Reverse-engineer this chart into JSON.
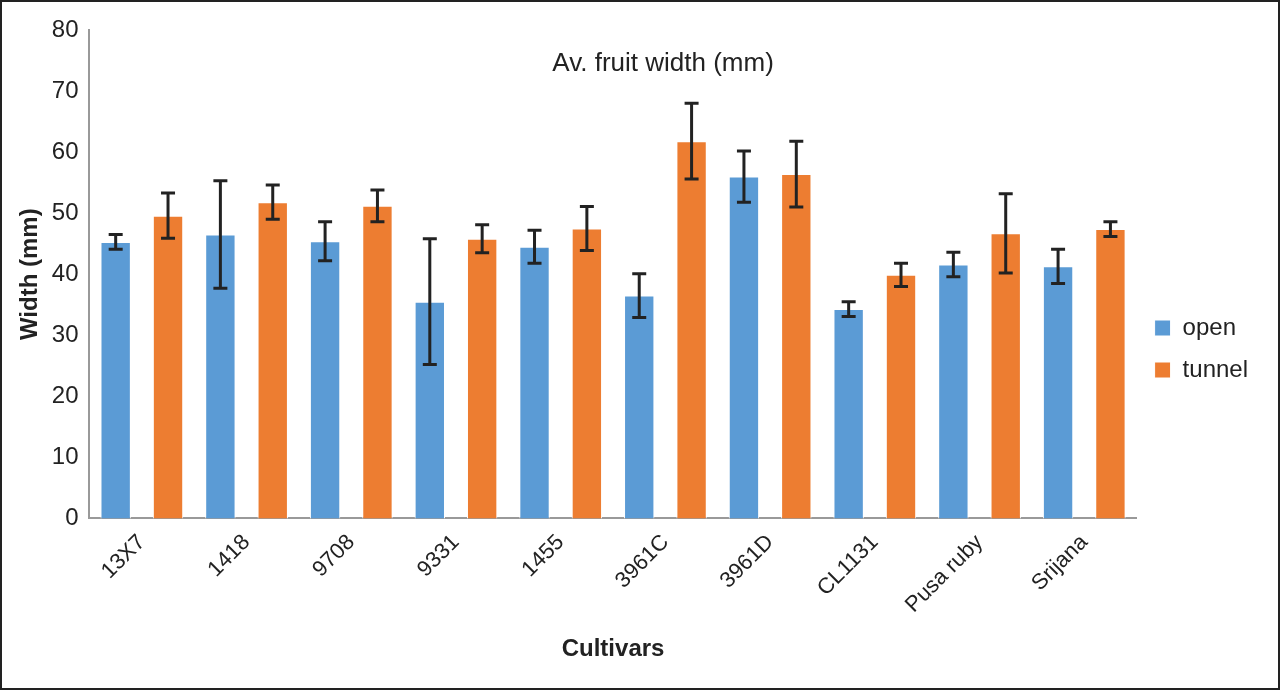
{
  "chart_data": {
    "type": "bar",
    "title": "Av. fruit width (mm)",
    "xlabel": "Cultivars",
    "ylabel": "Width (mm)",
    "categories": [
      "13X7",
      "1418",
      "9708",
      "9331",
      "1455",
      "3961C",
      "3961D",
      "CL1131",
      "Pusa ruby",
      "Srijana"
    ],
    "series": [
      {
        "name": "open",
        "color": "#5b9bd5",
        "values": [
          45.3,
          46.5,
          45.4,
          35.5,
          44.5,
          36.5,
          56.0,
          34.3,
          41.6,
          41.3
        ],
        "errors": [
          1.2,
          8.8,
          3.2,
          10.3,
          2.7,
          3.6,
          4.2,
          1.2,
          2.0,
          2.8
        ]
      },
      {
        "name": "tunnel",
        "color": "#ed7d31",
        "values": [
          49.6,
          51.8,
          51.2,
          45.8,
          47.5,
          61.8,
          56.4,
          39.9,
          46.7,
          47.4
        ],
        "errors": [
          3.7,
          2.8,
          2.6,
          2.3,
          3.6,
          6.2,
          5.4,
          1.9,
          6.5,
          1.2
        ]
      }
    ],
    "ylim": [
      0,
      80
    ],
    "yticks": [
      0,
      10,
      20,
      30,
      40,
      50,
      60,
      70,
      80
    ],
    "grid": false,
    "legend": "right"
  }
}
